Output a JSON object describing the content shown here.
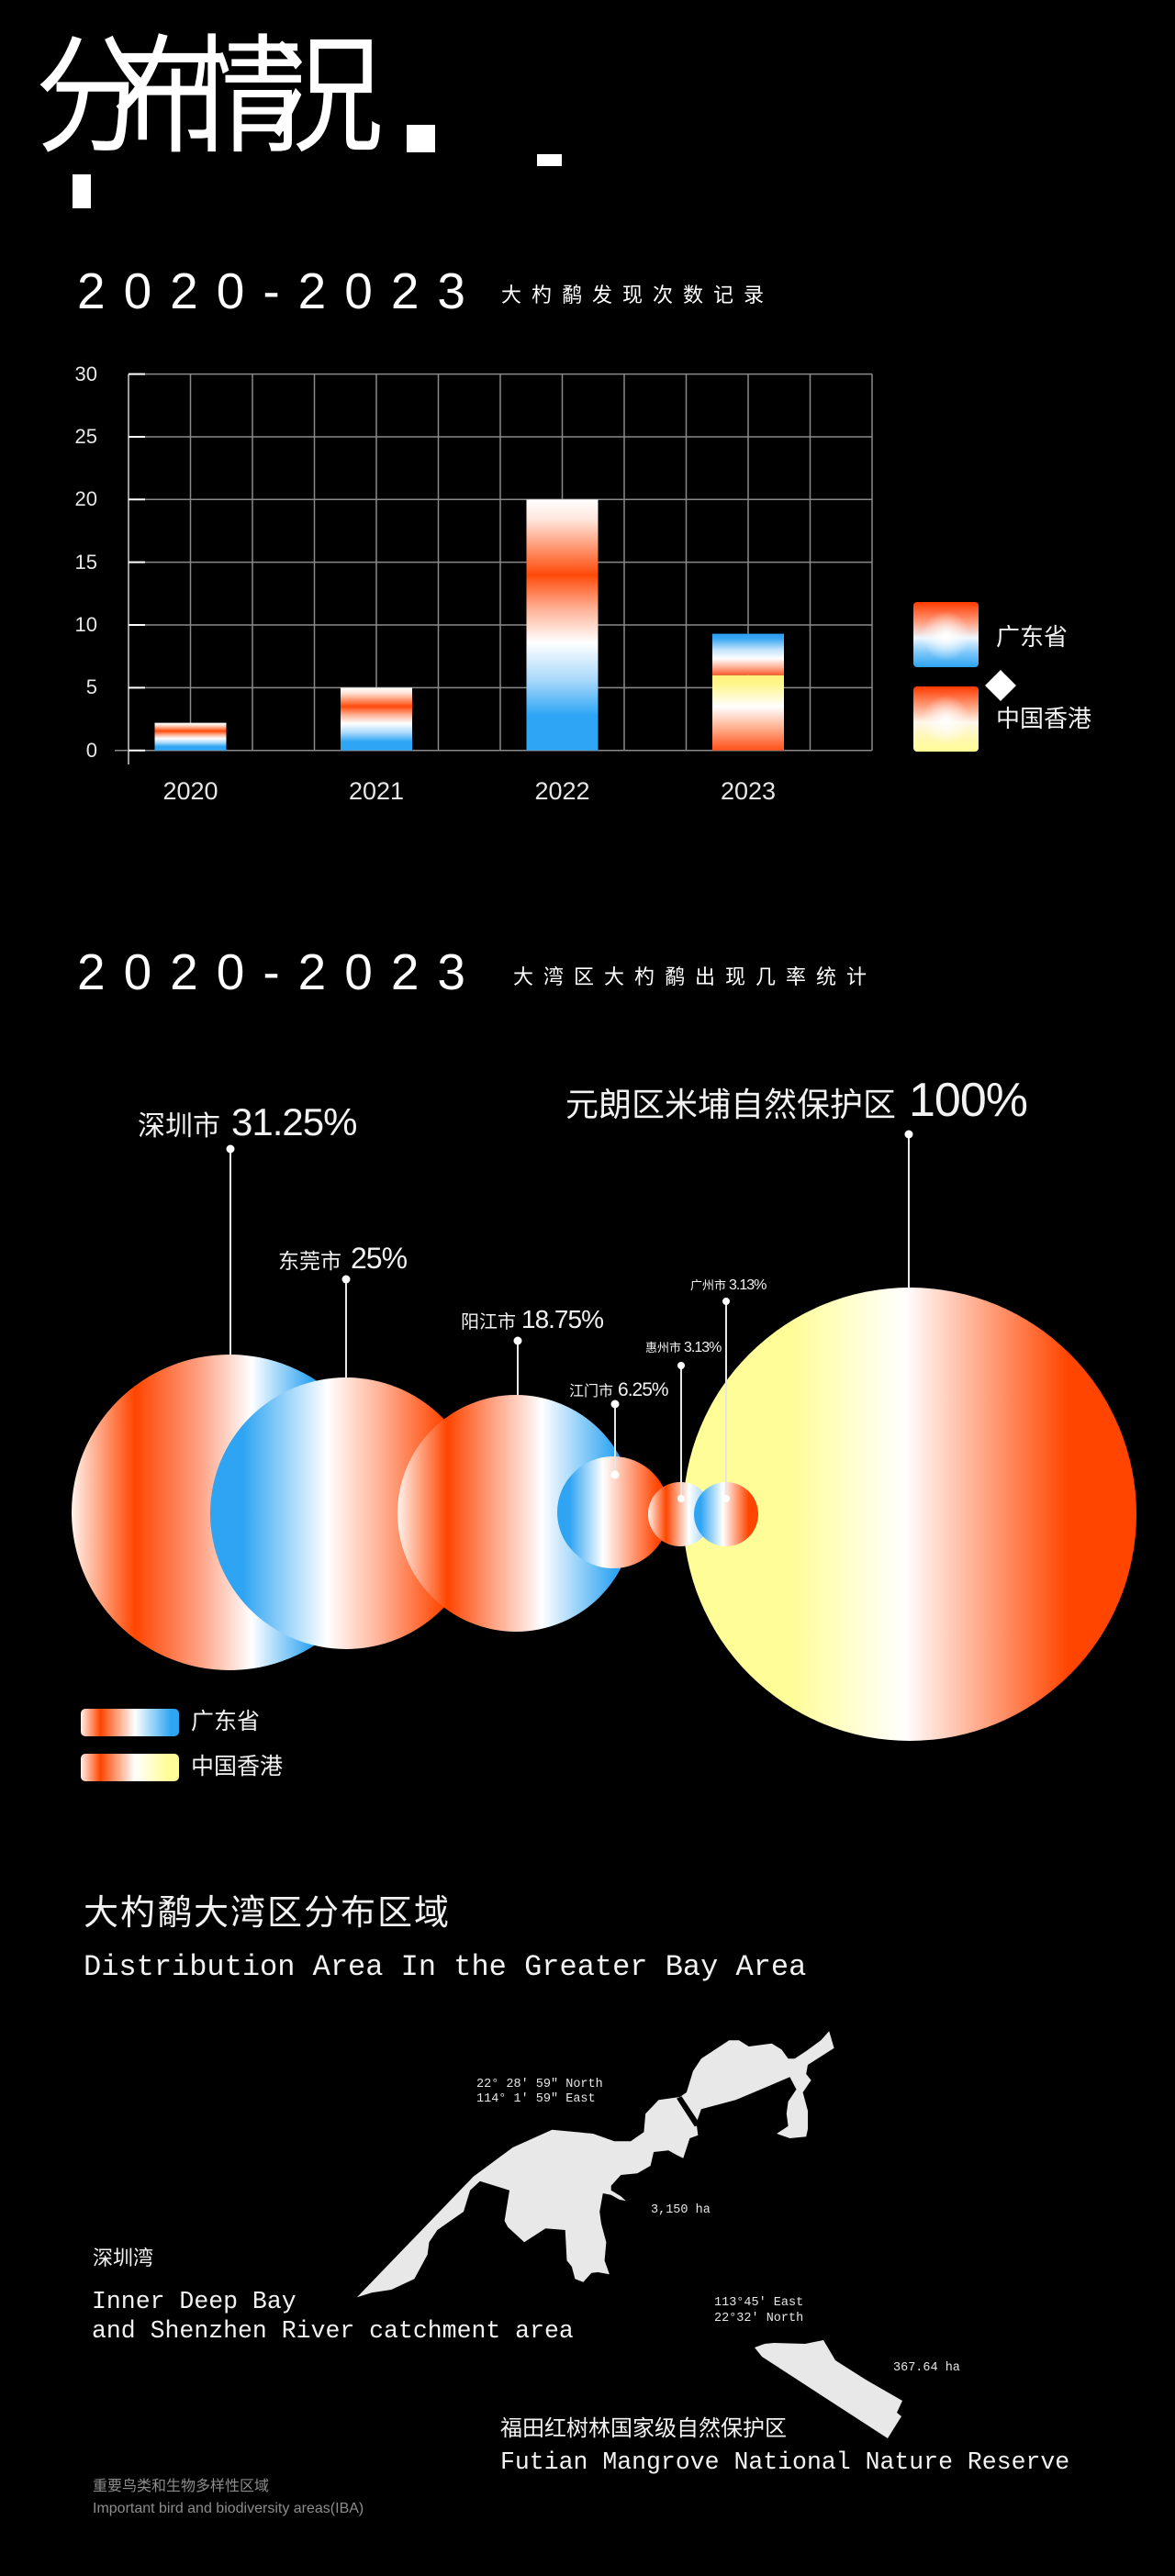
{
  "header": {
    "title": "分布情况"
  },
  "sections": [
    {
      "years": "2020-2023",
      "subtitle": "大杓鹬发现次数记录"
    },
    {
      "years": "2020-2023",
      "subtitle": "大湾区大杓鹬出现几率统计"
    },
    {
      "title_zh": "大杓鹬大湾区分布区域",
      "title_en": "Distribution Area In the Greater Bay Area"
    }
  ],
  "colors": {
    "background": "#000000",
    "guangdong_red": "#ff4500",
    "guangdong_blue": "#2ea4f2",
    "hongkong_yellow": "#fffd98",
    "white": "#ffffff",
    "grid": "#8a8a8a",
    "map_fill": "#e8e8e8",
    "footnote_gray": "#8c8c8c"
  },
  "chart_data": [
    {
      "type": "bar",
      "stacked": true,
      "title": "2020-2023 大杓鹬发现次数记录",
      "categories": [
        "2020",
        "2021",
        "2022",
        "2023"
      ],
      "series": [
        {
          "name": "中国香港",
          "values": [
            0,
            0,
            0,
            6
          ]
        },
        {
          "name": "广东省",
          "values": [
            2.2,
            5,
            20,
            3.3
          ]
        }
      ],
      "xlabel": "",
      "ylabel": "",
      "ylim": [
        0,
        30
      ],
      "yticks": [
        "0",
        "5",
        "10",
        "15",
        "20",
        "25",
        "30"
      ],
      "grid": true,
      "legend": {
        "position": "right",
        "entries": [
          "广东省",
          "中国香港"
        ]
      }
    },
    {
      "type": "scatter",
      "marker": "bubble",
      "title": "2020-2023 大湾区大杓鹬出现几率统计",
      "points": [
        {
          "label": "深圳市",
          "value": 31.25,
          "value_label": "31.25%",
          "group": "广东省"
        },
        {
          "label": "东莞市",
          "value": 25,
          "value_label": "25%",
          "group": "广东省"
        },
        {
          "label": "阳江市",
          "value": 18.75,
          "value_label": "18.75%",
          "group": "广东省"
        },
        {
          "label": "江门市",
          "value": 6.25,
          "value_label": "6.25%",
          "group": "广东省"
        },
        {
          "label": "惠州市",
          "value": 3.13,
          "value_label": "3.13%",
          "group": "广东省"
        },
        {
          "label": "广州市",
          "value": 3.13,
          "value_label": "3.13%",
          "group": "广东省"
        },
        {
          "label": "元朗区米埔自然保护区",
          "value": 100,
          "value_label": "100%",
          "group": "中国香港"
        }
      ],
      "legend": {
        "position": "bottom-left",
        "entries": [
          "广东省",
          "中国香港"
        ]
      }
    }
  ],
  "distribution_map": {
    "areas": [
      {
        "name_zh": "深圳湾",
        "name_en_line1": "Inner Deep Bay",
        "name_en_line2": "and Shenzhen River catchment area",
        "coord_line1": "22° 28' 59\" North",
        "coord_line2": "114° 1' 59\" East",
        "area": "3,150 ha"
      },
      {
        "name_zh": "福田红树林国家级自然保护区",
        "name_en": "Futian Mangrove National Nature Reserve",
        "coord_line1": "113°45′ East",
        "coord_line2": "22°32′ North",
        "area": "367.64 ha"
      }
    ],
    "footnote_zh": "重要鸟类和生物多样性区域",
    "footnote_en": "Important bird and biodiversity areas(IBA)"
  }
}
